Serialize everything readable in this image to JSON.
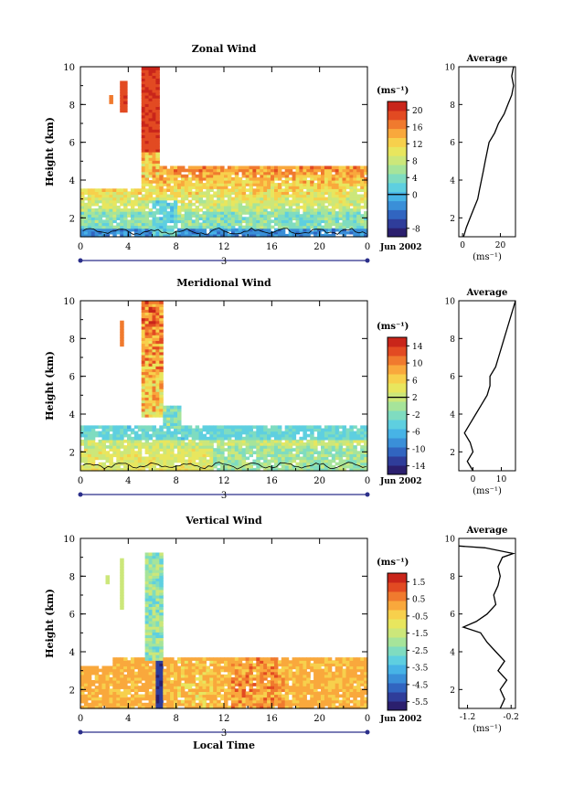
{
  "figure": {
    "month_label": "Jun 2002",
    "xlabel": "Local Time",
    "unit_label": "(ms⁻¹)",
    "height_label": "Height (km)",
    "average_title": "Average"
  },
  "colors": {
    "scale": [
      "#2b1f6e",
      "#2f3d9a",
      "#3165c0",
      "#3a8fd8",
      "#47b3e6",
      "#5ecfe0",
      "#7fdcc0",
      "#a6e49a",
      "#cce77a",
      "#e8e65e",
      "#f7d04c",
      "#f9a83c",
      "#f07a2e",
      "#e24a22",
      "#c9251a"
    ]
  },
  "chart_data": [
    {
      "type": "heatmap",
      "title": "Zonal Wind",
      "xlabel": "",
      "ylabel": "Height (km)",
      "x_ticks": [
        "0",
        "4",
        "8",
        "12",
        "16",
        "20",
        "0"
      ],
      "x_range": [
        0,
        24
      ],
      "y_ticks": [
        "2",
        "4",
        "6",
        "8",
        "10"
      ],
      "y_range": [
        1,
        10
      ],
      "date_label": "3",
      "colorbar": {
        "unit": "(ms⁻¹)",
        "labels": [
          "20",
          "16",
          "12",
          "8",
          "4",
          "0",
          "-8"
        ],
        "range": [
          -10,
          22
        ],
        "contour_value": 0
      },
      "pattern": {
        "kind": "zonal",
        "min_h": 1.0
      },
      "average_profile": {
        "title": "Average",
        "xlabel": "(ms⁻¹)",
        "x_ticks": [
          "0",
          "20"
        ],
        "x_tick_values": [
          0,
          20
        ],
        "x_range": [
          -2,
          28
        ],
        "y_ticks": [
          "2",
          "4",
          "6",
          "8",
          "10"
        ],
        "y_range": [
          1,
          10
        ],
        "points": [
          [
            0.5,
            1.0
          ],
          [
            2,
            1.5
          ],
          [
            4,
            2.0
          ],
          [
            6,
            2.5
          ],
          [
            8,
            3.0
          ],
          [
            9,
            3.5
          ],
          [
            10,
            4.0
          ],
          [
            11,
            4.5
          ],
          [
            12,
            5.0
          ],
          [
            13,
            5.5
          ],
          [
            14,
            6.0
          ],
          [
            17,
            6.5
          ],
          [
            19,
            7.0
          ],
          [
            22,
            7.5
          ],
          [
            24,
            8.0
          ],
          [
            26,
            8.5
          ],
          [
            27,
            9.0
          ],
          [
            26,
            9.5
          ],
          [
            27,
            10.0
          ]
        ]
      }
    },
    {
      "type": "heatmap",
      "title": "Meridional Wind",
      "xlabel": "",
      "ylabel": "Height (km)",
      "x_ticks": [
        "0",
        "4",
        "8",
        "12",
        "16",
        "20",
        "0"
      ],
      "x_range": [
        0,
        24
      ],
      "y_ticks": [
        "2",
        "4",
        "6",
        "8",
        "10"
      ],
      "y_range": [
        1,
        10
      ],
      "date_label": "3",
      "colorbar": {
        "unit": "(ms⁻¹)",
        "labels": [
          "14",
          "10",
          "6",
          "2",
          "-2",
          "-6",
          "-10",
          "-14"
        ],
        "range": [
          -16,
          16
        ],
        "contour_value": 2
      },
      "pattern": {
        "kind": "meridional",
        "min_h": 1.0
      },
      "average_profile": {
        "title": "Average",
        "xlabel": "(ms⁻¹)",
        "x_ticks": [
          "0",
          "10"
        ],
        "x_tick_values": [
          0,
          10
        ],
        "x_range": [
          -5,
          15
        ],
        "y_ticks": [
          "2",
          "4",
          "6",
          "8",
          "10"
        ],
        "y_range": [
          1,
          10
        ],
        "points": [
          [
            0,
            1.0
          ],
          [
            -2,
            1.5
          ],
          [
            0,
            2.0
          ],
          [
            -1,
            2.5
          ],
          [
            -3,
            3.0
          ],
          [
            -1,
            3.5
          ],
          [
            1,
            4.0
          ],
          [
            3,
            4.5
          ],
          [
            5,
            5.0
          ],
          [
            6,
            5.5
          ],
          [
            6,
            6.0
          ],
          [
            8,
            6.5
          ],
          [
            9,
            7.0
          ],
          [
            10,
            7.5
          ],
          [
            11,
            8.0
          ],
          [
            12,
            8.5
          ],
          [
            13,
            9.0
          ],
          [
            14,
            9.5
          ],
          [
            15,
            10.0
          ]
        ]
      }
    },
    {
      "type": "heatmap",
      "title": "Vertical Wind",
      "xlabel": "Local Time",
      "ylabel": "Height (km)",
      "x_ticks": [
        "0",
        "4",
        "8",
        "12",
        "16",
        "20",
        "0"
      ],
      "x_range": [
        0,
        24
      ],
      "y_ticks": [
        "2",
        "4",
        "6",
        "8",
        "10"
      ],
      "y_range": [
        1,
        10
      ],
      "date_label": "3",
      "colorbar": {
        "unit": "(ms⁻¹)",
        "labels": [
          "1.5",
          "0.5",
          "-0.5",
          "-1.5",
          "-2.5",
          "-3.5",
          "-4.5",
          "-5.5"
        ],
        "range": [
          -6,
          2
        ],
        "contour_value": null
      },
      "pattern": {
        "kind": "vertical",
        "min_h": 1.0
      },
      "average_profile": {
        "title": "Average",
        "xlabel": "(ms⁻¹)",
        "x_ticks": [
          "-1.2",
          "-0.2"
        ],
        "x_tick_values": [
          -1.2,
          -0.2
        ],
        "x_range": [
          -1.4,
          -0.1
        ],
        "y_ticks": [
          "2",
          "4",
          "6",
          "8",
          "10"
        ],
        "y_range": [
          1,
          10
        ],
        "points": [
          [
            -0.45,
            1.0
          ],
          [
            -0.35,
            1.5
          ],
          [
            -0.45,
            2.0
          ],
          [
            -0.3,
            2.5
          ],
          [
            -0.5,
            3.0
          ],
          [
            -0.35,
            3.5
          ],
          [
            -0.55,
            4.0
          ],
          [
            -0.75,
            4.5
          ],
          [
            -0.9,
            5.0
          ],
          [
            -1.3,
            5.3
          ],
          [
            -1.0,
            5.6
          ],
          [
            -0.75,
            6.0
          ],
          [
            -0.55,
            6.5
          ],
          [
            -0.6,
            7.0
          ],
          [
            -0.5,
            7.5
          ],
          [
            -0.45,
            8.0
          ],
          [
            -0.5,
            8.5
          ],
          [
            -0.4,
            9.0
          ],
          [
            -0.15,
            9.2
          ],
          [
            -0.8,
            9.5
          ],
          [
            -1.4,
            9.6
          ]
        ]
      }
    }
  ]
}
